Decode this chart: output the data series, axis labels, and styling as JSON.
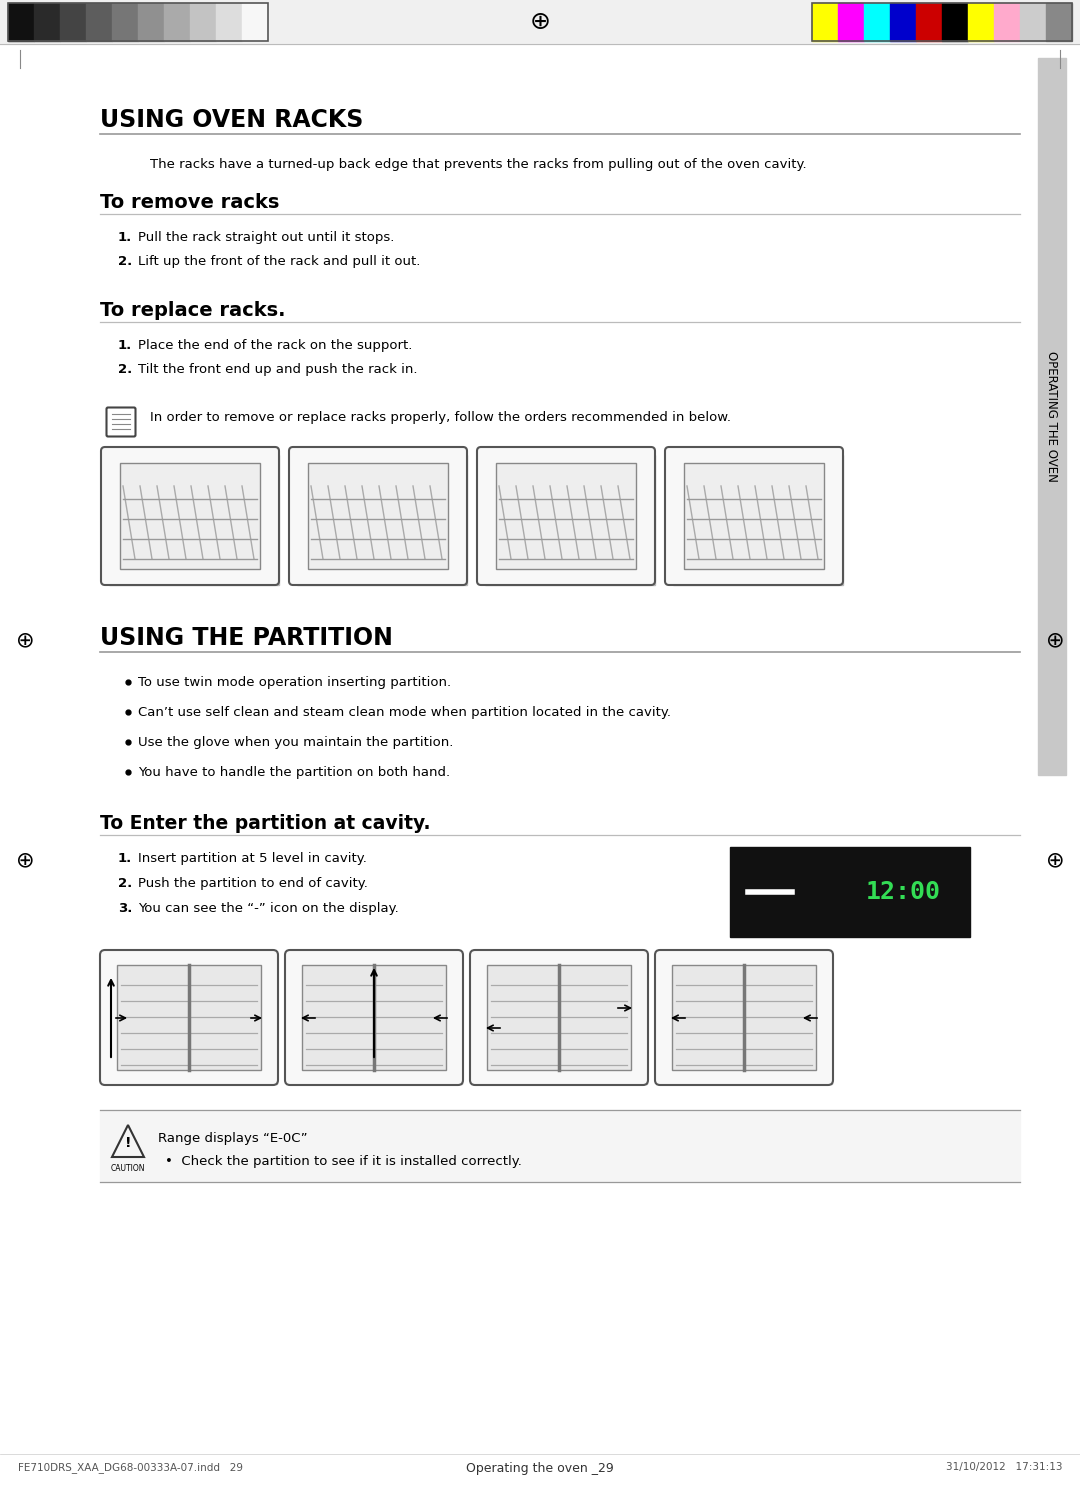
{
  "bg_color": "#ffffff",
  "title1": "USING OVEN RACKS",
  "title2": "USING THE PARTITION",
  "subtitle1": "To remove racks",
  "subtitle2": "To replace racks.",
  "subtitle3": "To Enter the partition at cavity.",
  "intro_text": "The racks have a turned-up back edge that prevents the racks from pulling out of the oven cavity.",
  "remove_steps": [
    "Pull the rack straight out until it stops.",
    "Lift up the front of the rack and pull it out."
  ],
  "replace_steps": [
    "Place the end of the rack on the support.",
    "Tilt the front end up and push the rack in."
  ],
  "note_text": "In order to remove or replace racks properly, follow the orders recommended in below.",
  "partition_bullets": [
    "To use twin mode operation inserting partition.",
    "Can’t use self clean and steam clean mode when partition located in the cavity.",
    "Use the glove when you maintain the partition.",
    "You have to handle the partition on both hand."
  ],
  "partition_steps": [
    "Insert partition at 5 level in cavity.",
    "Push the partition to end of cavity.",
    "You can see the “-” icon on the display."
  ],
  "caution_title": "Range displays “E-0C”",
  "caution_bullet": "Check the partition to see if it is installed correctly.",
  "sidebar_text": "OPERATING THE OVEN",
  "footer_left": "FE710DRS_XAA_DG68-00333A-07.indd   29",
  "footer_center": "Operating the oven _29",
  "footer_right": "31/10/2012   17:31:13",
  "header_bar_left_colors": [
    "#111111",
    "#2a2a2a",
    "#444444",
    "#5d5d5d",
    "#767676",
    "#909090",
    "#aaaaaa",
    "#c3c3c3",
    "#dddddd",
    "#f7f7f7"
  ],
  "header_bar_right_colors": [
    "#ffff00",
    "#ff00ff",
    "#00ffff",
    "#0000cc",
    "#cc0000",
    "#000000",
    "#ffff00",
    "#ffaacc",
    "#cccccc",
    "#888888"
  ]
}
